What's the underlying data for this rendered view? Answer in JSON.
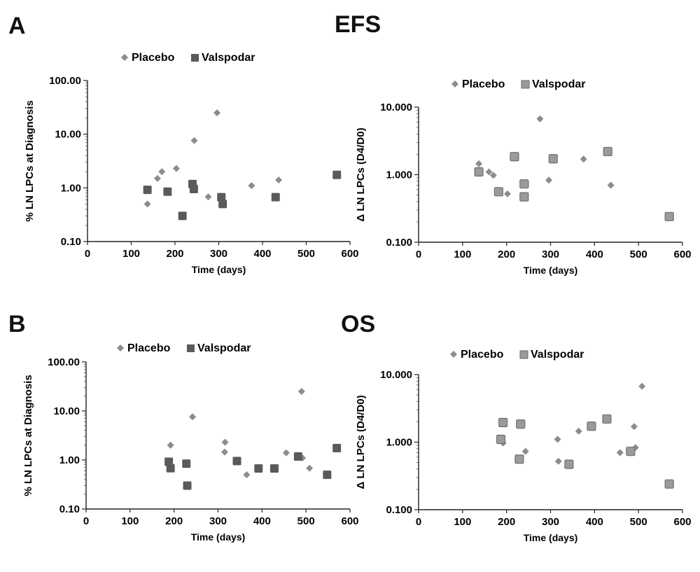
{
  "figure": {
    "letters": [
      "A",
      "B"
    ],
    "section_titles": [
      "EFS",
      "OS"
    ]
  },
  "colors": {
    "placebo": "#8c8c8c",
    "valspodar": "#5a5a5a",
    "valspodar_fill_light": "#9a9a9a"
  },
  "chart_data": [
    {
      "type": "scatter",
      "panel": "A",
      "xlabel": "Time (days)",
      "ylabel": "% LN LPCs  at Diagnosis",
      "xlim": [
        0,
        600
      ],
      "xticks": [
        0,
        100,
        200,
        300,
        400,
        500,
        600
      ],
      "ylim": [
        0.1,
        100
      ],
      "yscale": "log",
      "yticks": [
        "0.10",
        "1.00",
        "10.00",
        "100.00"
      ],
      "grid": false,
      "legend": "top",
      "series": [
        {
          "name": "Placebo",
          "marker": "diamond",
          "x": [
            137,
            160,
            170,
            203,
            244,
            276,
            296,
            375,
            437
          ],
          "y": [
            0.5,
            1.5,
            2.0,
            2.3,
            7.6,
            0.68,
            25.0,
            1.1,
            1.4
          ]
        },
        {
          "name": "Valspodar",
          "marker": "square",
          "x": [
            137,
            183,
            217,
            240,
            243,
            306,
            309,
            430,
            570
          ],
          "y": [
            0.92,
            0.85,
            0.3,
            1.18,
            0.95,
            0.67,
            0.5,
            0.67,
            1.75
          ]
        }
      ]
    },
    {
      "type": "scatter",
      "panel": "A",
      "xlabel": "Time (days)",
      "ylabel": "Δ LN LPCs (D4/D0)",
      "xlim": [
        0,
        600
      ],
      "xticks": [
        0,
        100,
        200,
        300,
        400,
        500,
        600
      ],
      "ylim": [
        0.1,
        10
      ],
      "yscale": "log",
      "yticks": [
        "0.100",
        "1.000",
        "10.000"
      ],
      "grid": false,
      "legend": "top",
      "series": [
        {
          "name": "Placebo",
          "marker": "diamond",
          "x": [
            137,
            160,
            170,
            202,
            244,
            276,
            296,
            375,
            437
          ],
          "y": [
            1.45,
            1.1,
            0.98,
            0.52,
            0.73,
            6.7,
            0.83,
            1.7,
            0.7
          ]
        },
        {
          "name": "Valspodar",
          "marker": "square",
          "x": [
            137,
            182,
            218,
            240,
            240,
            306,
            430,
            570
          ],
          "y": [
            1.1,
            0.56,
            1.85,
            0.73,
            0.47,
            1.72,
            2.2,
            0.24
          ]
        }
      ]
    },
    {
      "type": "scatter",
      "panel": "B",
      "xlabel": "Time (days)",
      "ylabel": "% LN LPCs  at Diagnosis",
      "xlim": [
        0,
        600
      ],
      "xticks": [
        0,
        100,
        200,
        300,
        400,
        500,
        600
      ],
      "ylim": [
        0.1,
        100
      ],
      "yscale": "log",
      "yticks": [
        "0.10",
        "1.00",
        "10.00",
        "100.00"
      ],
      "grid": false,
      "legend": "top",
      "series": [
        {
          "name": "Placebo",
          "marker": "diamond",
          "x": [
            192,
            242,
            315,
            316,
            365,
            455,
            490,
            492,
            508
          ],
          "y": [
            2.0,
            7.6,
            1.45,
            2.3,
            0.5,
            1.4,
            25.0,
            1.1,
            0.68
          ]
        },
        {
          "name": "Valspodar",
          "marker": "square",
          "x": [
            188,
            192,
            228,
            230,
            343,
            392,
            428,
            482,
            548,
            570
          ],
          "y": [
            0.92,
            0.68,
            0.84,
            0.3,
            0.95,
            0.67,
            0.67,
            1.18,
            0.5,
            1.75
          ]
        }
      ]
    },
    {
      "type": "scatter",
      "panel": "B",
      "xlabel": "Time (days)",
      "ylabel": "Δ LN LPCs (D4/D0)",
      "xlim": [
        0,
        600
      ],
      "xticks": [
        0,
        100,
        200,
        300,
        400,
        500,
        600
      ],
      "ylim": [
        0.1,
        10
      ],
      "yscale": "log",
      "yticks": [
        "0.100",
        "1.000",
        "10.000"
      ],
      "grid": false,
      "legend": "top",
      "series": [
        {
          "name": "Placebo",
          "marker": "diamond",
          "x": [
            192,
            243,
            316,
            318,
            364,
            458,
            490,
            493,
            508
          ],
          "y": [
            0.97,
            0.73,
            1.1,
            0.52,
            1.45,
            0.7,
            1.7,
            0.83,
            6.7
          ]
        },
        {
          "name": "Valspodar",
          "marker": "square",
          "x": [
            187,
            192,
            229,
            232,
            342,
            393,
            428,
            482,
            570
          ],
          "y": [
            1.1,
            1.95,
            0.56,
            1.85,
            0.47,
            1.72,
            2.2,
            0.73,
            0.24
          ]
        }
      ]
    }
  ]
}
